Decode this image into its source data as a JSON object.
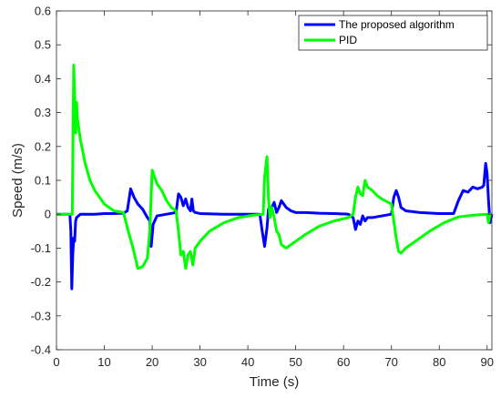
{
  "chart_data": {
    "type": "line",
    "title": "",
    "xlabel": "Time (s)",
    "ylabel": "Speed (m/s)",
    "xlim": [
      0,
      91
    ],
    "ylim": [
      -0.4,
      0.6
    ],
    "x_ticks": [
      0,
      10,
      20,
      30,
      40,
      50,
      60,
      70,
      80,
      90
    ],
    "y_ticks": [
      -0.4,
      -0.3,
      -0.2,
      -0.1,
      0,
      0.1,
      0.2,
      0.3,
      0.4,
      0.5,
      0.6
    ],
    "x_tick_labels": [
      "0",
      "10",
      "20",
      "30",
      "40",
      "50",
      "60",
      "70",
      "80",
      "90"
    ],
    "y_tick_labels": [
      "-0.4",
      "-0.3",
      "-0.2",
      "-0.1",
      "0",
      "0.1",
      "0.2",
      "0.3",
      "0.4",
      "0.5",
      "0.6"
    ],
    "grid": false,
    "legend_position": "top-right",
    "series": [
      {
        "name": "The proposed algorithm",
        "color": "#0000ff",
        "x": [
          0,
          2.8,
          3.0,
          3.2,
          3.4,
          3.6,
          3.8,
          4.0,
          4.2,
          5.0,
          6.0,
          8.0,
          10.0,
          12.0,
          14.0,
          14.8,
          15.5,
          16.2,
          17.0,
          18.0,
          19.0,
          19.5,
          19.8,
          20.2,
          21.0,
          23.0,
          25.0,
          25.5,
          26.0,
          26.5,
          27.0,
          27.5,
          28.0,
          28.3,
          28.6,
          29.0,
          30.0,
          35.0,
          40.0,
          42.5,
          43.0,
          43.5,
          44.0,
          44.3,
          44.6,
          45.0,
          45.5,
          46.0,
          46.5,
          47.0,
          47.5,
          48.0,
          49.0,
          50.0,
          52.0,
          55.0,
          58.0,
          61.0,
          62.0,
          62.5,
          63.0,
          63.5,
          64.0,
          64.5,
          65.0,
          66.0,
          68.0,
          70.0,
          70.5,
          71.0,
          71.5,
          72.0,
          73.0,
          76.0,
          80.0,
          83.0,
          84.0,
          85.0,
          86.0,
          87.0,
          88.0,
          89.0,
          89.3,
          89.7,
          90.0,
          90.3,
          90.6,
          91.0
        ],
        "y": [
          0,
          0,
          -0.05,
          -0.22,
          -0.12,
          -0.07,
          -0.08,
          -0.02,
          -0.01,
          0,
          0,
          0,
          0.002,
          0.002,
          0.003,
          0.01,
          0.075,
          0.05,
          0.03,
          0.015,
          -0.01,
          -0.02,
          -0.095,
          -0.03,
          -0.005,
          0,
          0.005,
          0.06,
          0.05,
          0.025,
          0.045,
          0.02,
          0.01,
          0.045,
          0.01,
          0.005,
          0.002,
          0,
          0,
          0,
          -0.05,
          -0.095,
          -0.04,
          0.015,
          0.02,
          0.02,
          0.035,
          0.005,
          0.02,
          0.04,
          0.03,
          0.02,
          0.01,
          0.005,
          0.005,
          0.003,
          0.002,
          0,
          -0.01,
          -0.045,
          -0.02,
          -0.03,
          -0.005,
          -0.02,
          -0.01,
          -0.01,
          -0.005,
          0,
          0.05,
          0.07,
          0.05,
          0.02,
          0.01,
          0.005,
          0.002,
          0.002,
          0.04,
          0.07,
          0.065,
          0.08,
          0.075,
          0.08,
          0.085,
          0.15,
          0.12,
          0.04,
          -0.025,
          0
        ]
      },
      {
        "name": "PID",
        "color": "#00ff00",
        "x": [
          0,
          3.3,
          3.6,
          3.8,
          4.0,
          4.2,
          4.4,
          4.6,
          5.0,
          6.0,
          7.0,
          8.0,
          10.0,
          12.0,
          14.0,
          15.0,
          16.0,
          17.0,
          18.0,
          19.0,
          19.5,
          20.0,
          20.5,
          21.0,
          22.0,
          23.0,
          24.0,
          25.0,
          25.5,
          26.0,
          26.5,
          27.0,
          27.5,
          28.0,
          28.5,
          29.0,
          30.0,
          32.0,
          35.0,
          38.0,
          41.0,
          43.2,
          43.5,
          44.0,
          44.3,
          44.6,
          45.0,
          45.5,
          46.0,
          46.5,
          47.0,
          48.0,
          49.0,
          50.0,
          52.0,
          55.0,
          58.0,
          61.0,
          62.0,
          62.5,
          63.0,
          63.5,
          64.0,
          64.5,
          65.0,
          66.0,
          67.0,
          68.0,
          70.0,
          70.5,
          71.0,
          71.5,
          72.0,
          73.0,
          75.0,
          78.0,
          81.0,
          84.0,
          87.0,
          89.0,
          90.0,
          90.3,
          90.6,
          91.0
        ],
        "y": [
          0,
          0,
          0.44,
          0.35,
          0.24,
          0.33,
          0.28,
          0.26,
          0.22,
          0.15,
          0.1,
          0.07,
          0.03,
          0.01,
          0.005,
          -0.05,
          -0.1,
          -0.16,
          -0.155,
          -0.13,
          -0.05,
          0.13,
          0.11,
          0.09,
          0.07,
          0.04,
          0.02,
          0.01,
          -0.05,
          -0.12,
          -0.11,
          -0.16,
          -0.12,
          -0.11,
          -0.15,
          -0.1,
          -0.08,
          -0.05,
          -0.025,
          -0.01,
          -0.003,
          0,
          0.11,
          0.17,
          0.05,
          -0.01,
          0.02,
          -0.01,
          -0.05,
          -0.06,
          -0.09,
          -0.1,
          -0.09,
          -0.08,
          -0.06,
          -0.035,
          -0.02,
          -0.01,
          0,
          0.05,
          0.08,
          0.06,
          0.055,
          0.1,
          0.08,
          0.07,
          0.055,
          0.045,
          0.03,
          -0.02,
          -0.07,
          -0.11,
          -0.115,
          -0.1,
          -0.08,
          -0.05,
          -0.025,
          -0.008,
          -0.003,
          -0.001,
          0,
          -0.025,
          0,
          0
        ]
      }
    ]
  }
}
